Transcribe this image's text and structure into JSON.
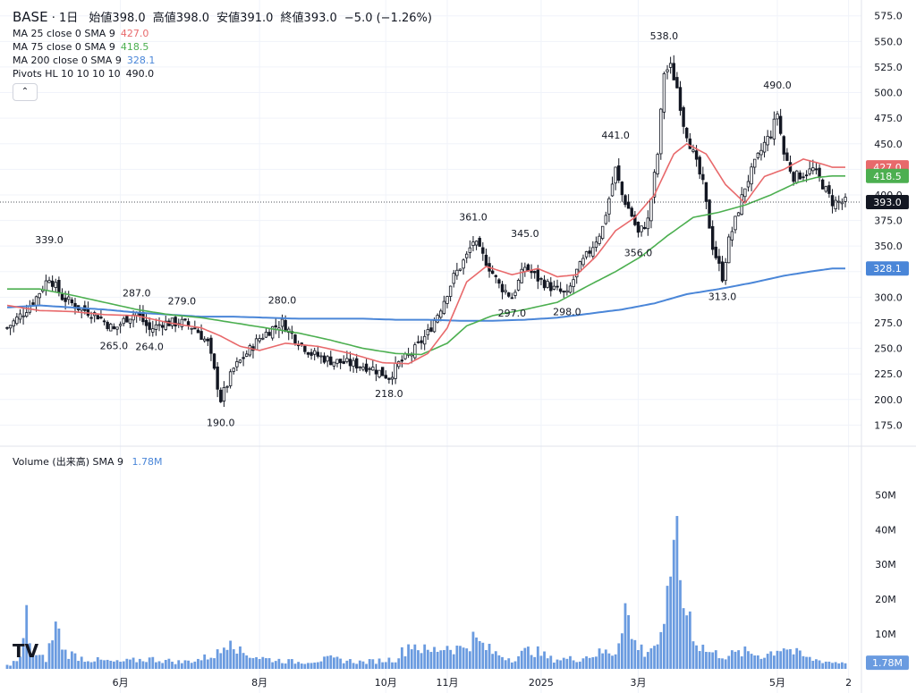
{
  "header": {
    "symbol": "BASE",
    "interval": "1日",
    "open_label": "始値",
    "open": "398.0",
    "high_label": "高値",
    "high": "398.0",
    "low_label": "安値",
    "low": "391.0",
    "close_label": "終値",
    "close": "393.0",
    "change": "−5.0 (−1.26%)"
  },
  "indicators": [
    {
      "label": "MA 25 close 0 SMA 9",
      "value": "427.0",
      "color": "#e8696b"
    },
    {
      "label": "MA 75 close 0 SMA 9",
      "value": "418.5",
      "color": "#4caf50"
    },
    {
      "label": "MA 200 close 0 SMA 9",
      "value": "328.1",
      "color": "#4a86d8"
    },
    {
      "label": "Pivots HL 10 10 10 10",
      "value": "490.0",
      "color": "#131722"
    }
  ],
  "volume_header": {
    "label": "Volume (出来高)",
    "sma": "SMA 9",
    "value": "1.78M",
    "color": "#4a86d8"
  },
  "colors": {
    "up": "#131722",
    "down": "#131722",
    "volume": "#6a9be0",
    "grid": "#f0f3fa"
  },
  "chart_data": {
    "type": "candlestick",
    "price_axis": {
      "ticks": [
        "175.0",
        "200.0",
        "225.0",
        "250.0",
        "275.0",
        "300.0",
        "325.0",
        "350.0",
        "375.0",
        "400.0",
        "425.0",
        "450.0",
        "475.0",
        "500.0",
        "525.0",
        "550.0",
        "575.0"
      ],
      "ylim": [
        164,
        580
      ]
    },
    "volume_axis": {
      "ticks": [
        "10M",
        "20M",
        "30M",
        "40M",
        "50M"
      ],
      "ylim": [
        0,
        56
      ]
    },
    "x_ticks": [
      "6月",
      "8月",
      "10月",
      "11月",
      "2025",
      "3月",
      "5月",
      "2"
    ],
    "x_tick_positions": [
      35,
      78,
      117,
      136,
      165,
      195,
      238,
      260
    ],
    "bar_count": 260,
    "current_price": {
      "value": 393.0,
      "label": "393.0"
    },
    "price_badges": [
      {
        "label": "427.0",
        "value": 427.0,
        "color": "#e8696b"
      },
      {
        "label": "418.5",
        "value": 418.5,
        "color": "#4caf50"
      },
      {
        "label": "393.0",
        "value": 393.0,
        "color": "#131722"
      },
      {
        "label": "328.1",
        "value": 328.1,
        "color": "#4a86d8"
      }
    ],
    "volume_badge": {
      "label": "1.78M",
      "value": 1.78
    },
    "pivots": [
      {
        "label": "339.0",
        "bar": 13,
        "value": 339,
        "pos": "high"
      },
      {
        "label": "265.0",
        "bar": 33,
        "value": 265,
        "pos": "low"
      },
      {
        "label": "287.0",
        "bar": 40,
        "value": 287,
        "pos": "high"
      },
      {
        "label": "264.0",
        "bar": 44,
        "value": 264,
        "pos": "low"
      },
      {
        "label": "279.0",
        "bar": 54,
        "value": 279,
        "pos": "high"
      },
      {
        "label": "190.0",
        "bar": 66,
        "value": 190,
        "pos": "low"
      },
      {
        "label": "280.0",
        "bar": 85,
        "value": 280,
        "pos": "high"
      },
      {
        "label": "218.0",
        "bar": 118,
        "value": 218,
        "pos": "low"
      },
      {
        "label": "361.0",
        "bar": 144,
        "value": 361,
        "pos": "high"
      },
      {
        "label": "297.0",
        "bar": 156,
        "value": 297,
        "pos": "low"
      },
      {
        "label": "345.0",
        "bar": 160,
        "value": 345,
        "pos": "high"
      },
      {
        "label": "298.0",
        "bar": 173,
        "value": 298,
        "pos": "low"
      },
      {
        "label": "441.0",
        "bar": 188,
        "value": 441,
        "pos": "high"
      },
      {
        "label": "356.0",
        "bar": 195,
        "value": 356,
        "pos": "low"
      },
      {
        "label": "538.0",
        "bar": 203,
        "value": 538,
        "pos": "high"
      },
      {
        "label": "313.0",
        "bar": 221,
        "value": 313,
        "pos": "low"
      },
      {
        "label": "490.0",
        "bar": 238,
        "value": 490,
        "pos": "high"
      }
    ],
    "price_path_anchors": [
      [
        0,
        270
      ],
      [
        5,
        285
      ],
      [
        9,
        300
      ],
      [
        13,
        320
      ],
      [
        17,
        300
      ],
      [
        22,
        290
      ],
      [
        28,
        282
      ],
      [
        33,
        268
      ],
      [
        37,
        280
      ],
      [
        40,
        285
      ],
      [
        44,
        268
      ],
      [
        48,
        275
      ],
      [
        54,
        275
      ],
      [
        58,
        270
      ],
      [
        62,
        255
      ],
      [
        66,
        200
      ],
      [
        70,
        230
      ],
      [
        74,
        245
      ],
      [
        78,
        260
      ],
      [
        82,
        270
      ],
      [
        85,
        275
      ],
      [
        89,
        260
      ],
      [
        94,
        245
      ],
      [
        100,
        238
      ],
      [
        106,
        235
      ],
      [
        112,
        232
      ],
      [
        118,
        222
      ],
      [
        121,
        235
      ],
      [
        125,
        245
      ],
      [
        130,
        265
      ],
      [
        134,
        290
      ],
      [
        138,
        320
      ],
      [
        142,
        340
      ],
      [
        144,
        355
      ],
      [
        148,
        335
      ],
      [
        152,
        312
      ],
      [
        156,
        300
      ],
      [
        160,
        330
      ],
      [
        164,
        318
      ],
      [
        169,
        308
      ],
      [
        173,
        302
      ],
      [
        176,
        325
      ],
      [
        180,
        345
      ],
      [
        184,
        368
      ],
      [
        188,
        425
      ],
      [
        190,
        400
      ],
      [
        193,
        380
      ],
      [
        195,
        362
      ],
      [
        198,
        375
      ],
      [
        201,
        440
      ],
      [
        203,
        520
      ],
      [
        205,
        525
      ],
      [
        207,
        505
      ],
      [
        209,
        470
      ],
      [
        212,
        440
      ],
      [
        215,
        410
      ],
      [
        218,
        350
      ],
      [
        221,
        320
      ],
      [
        223,
        355
      ],
      [
        225,
        375
      ],
      [
        228,
        408
      ],
      [
        231,
        430
      ],
      [
        234,
        450
      ],
      [
        236,
        460
      ],
      [
        238,
        480
      ],
      [
        240,
        440
      ],
      [
        243,
        418
      ],
      [
        246,
        420
      ],
      [
        249,
        425
      ],
      [
        252,
        410
      ],
      [
        255,
        393
      ]
    ],
    "ma25_anchors": [
      [
        0,
        292
      ],
      [
        10,
        287
      ],
      [
        20,
        286
      ],
      [
        30,
        283
      ],
      [
        40,
        282
      ],
      [
        50,
        275
      ],
      [
        60,
        270
      ],
      [
        66,
        262
      ],
      [
        72,
        252
      ],
      [
        78,
        248
      ],
      [
        86,
        255
      ],
      [
        96,
        252
      ],
      [
        106,
        245
      ],
      [
        116,
        236
      ],
      [
        124,
        235
      ],
      [
        130,
        245
      ],
      [
        136,
        270
      ],
      [
        142,
        315
      ],
      [
        148,
        330
      ],
      [
        156,
        322
      ],
      [
        164,
        328
      ],
      [
        170,
        320
      ],
      [
        176,
        322
      ],
      [
        182,
        340
      ],
      [
        188,
        365
      ],
      [
        194,
        378
      ],
      [
        200,
        400
      ],
      [
        206,
        440
      ],
      [
        210,
        450
      ],
      [
        216,
        440
      ],
      [
        222,
        410
      ],
      [
        228,
        392
      ],
      [
        234,
        418
      ],
      [
        240,
        425
      ],
      [
        246,
        435
      ],
      [
        252,
        430
      ],
      [
        255,
        427
      ]
    ],
    "ma75_anchors": [
      [
        0,
        308
      ],
      [
        10,
        308
      ],
      [
        20,
        302
      ],
      [
        30,
        295
      ],
      [
        40,
        288
      ],
      [
        50,
        283
      ],
      [
        60,
        280
      ],
      [
        70,
        275
      ],
      [
        80,
        270
      ],
      [
        90,
        265
      ],
      [
        100,
        258
      ],
      [
        110,
        250
      ],
      [
        120,
        245
      ],
      [
        128,
        244
      ],
      [
        136,
        255
      ],
      [
        142,
        272
      ],
      [
        150,
        282
      ],
      [
        160,
        288
      ],
      [
        170,
        295
      ],
      [
        180,
        312
      ],
      [
        188,
        325
      ],
      [
        196,
        340
      ],
      [
        204,
        360
      ],
      [
        212,
        378
      ],
      [
        220,
        383
      ],
      [
        228,
        390
      ],
      [
        236,
        400
      ],
      [
        244,
        412
      ],
      [
        250,
        417
      ],
      [
        255,
        418.5
      ]
    ],
    "ma200_anchors": [
      [
        0,
        290
      ],
      [
        10,
        292
      ],
      [
        20,
        290
      ],
      [
        30,
        288
      ],
      [
        40,
        285
      ],
      [
        50,
        283
      ],
      [
        60,
        281
      ],
      [
        70,
        281
      ],
      [
        80,
        280
      ],
      [
        90,
        279
      ],
      [
        100,
        279
      ],
      [
        110,
        279
      ],
      [
        120,
        278
      ],
      [
        130,
        278
      ],
      [
        140,
        277
      ],
      [
        150,
        277
      ],
      [
        160,
        278
      ],
      [
        170,
        280
      ],
      [
        180,
        284
      ],
      [
        190,
        288
      ],
      [
        200,
        294
      ],
      [
        210,
        303
      ],
      [
        220,
        308
      ],
      [
        230,
        314
      ],
      [
        240,
        321
      ],
      [
        248,
        325
      ],
      [
        255,
        328.1
      ]
    ],
    "volume_anchors": [
      [
        0,
        1
      ],
      [
        4,
        3
      ],
      [
        6,
        15
      ],
      [
        8,
        4
      ],
      [
        12,
        3
      ],
      [
        15,
        13
      ],
      [
        18,
        5
      ],
      [
        24,
        3
      ],
      [
        34,
        2
      ],
      [
        44,
        3
      ],
      [
        54,
        2
      ],
      [
        60,
        3
      ],
      [
        66,
        5
      ],
      [
        69,
        11
      ],
      [
        72,
        5
      ],
      [
        80,
        3
      ],
      [
        90,
        2
      ],
      [
        100,
        3
      ],
      [
        110,
        2
      ],
      [
        120,
        3
      ],
      [
        125,
        8
      ],
      [
        130,
        5
      ],
      [
        136,
        7
      ],
      [
        140,
        6
      ],
      [
        144,
        9
      ],
      [
        150,
        5
      ],
      [
        156,
        3
      ],
      [
        162,
        6
      ],
      [
        168,
        3
      ],
      [
        176,
        3
      ],
      [
        184,
        5
      ],
      [
        188,
        5
      ],
      [
        191,
        20
      ],
      [
        193,
        9
      ],
      [
        197,
        5
      ],
      [
        201,
        8
      ],
      [
        203,
        10
      ],
      [
        205,
        31
      ],
      [
        206,
        52
      ],
      [
        207,
        34
      ],
      [
        209,
        20
      ],
      [
        211,
        16
      ],
      [
        213,
        8
      ],
      [
        217,
        5
      ],
      [
        222,
        4
      ],
      [
        228,
        5
      ],
      [
        234,
        4
      ],
      [
        240,
        7
      ],
      [
        243,
        5
      ],
      [
        248,
        3
      ],
      [
        255,
        2
      ]
    ]
  }
}
